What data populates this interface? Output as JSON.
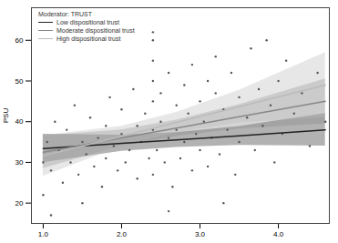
{
  "chart_data": {
    "type": "scatter",
    "y_label": "PSU",
    "legend": "top-left",
    "legend_title": "Moderator: TRUST",
    "grid": false,
    "xlim": [
      0.85,
      4.65
    ],
    "xticks": [
      1,
      2,
      3,
      4
    ],
    "ylim": [
      15,
      68
    ],
    "yticks": [
      20,
      30,
      40,
      50,
      60
    ],
    "points": {
      "color": "#555555",
      "x": [
        1.0,
        1.0,
        1.05,
        1.1,
        1.15,
        1.2,
        1.25,
        1.3,
        1.35,
        1.4,
        1.45,
        1.5,
        1.5,
        1.55,
        1.6,
        1.65,
        1.7,
        1.75,
        1.8,
        1.8,
        1.85,
        1.9,
        1.95,
        2.0,
        2.0,
        2.05,
        2.1,
        2.15,
        2.2,
        2.2,
        2.25,
        2.3,
        2.35,
        2.4,
        2.4,
        2.4,
        2.4,
        2.4,
        2.4,
        2.4,
        2.45,
        2.5,
        2.5,
        2.55,
        2.6,
        2.6,
        2.65,
        2.7,
        2.7,
        2.75,
        2.8,
        2.8,
        2.85,
        2.9,
        2.9,
        2.95,
        3.0,
        3.0,
        3.05,
        3.1,
        3.1,
        3.15,
        3.2,
        3.2,
        3.25,
        3.3,
        3.35,
        3.4,
        3.45,
        3.5,
        3.5,
        3.6,
        3.65,
        3.7,
        3.75,
        3.8,
        3.85,
        3.9,
        3.95,
        4.0,
        4.05,
        4.1,
        4.2,
        4.3,
        4.4,
        4.5,
        4.6,
        1.1,
        2.6,
        3.3
      ],
      "y": [
        30,
        22,
        35,
        28,
        40,
        33,
        25,
        38,
        30,
        44,
        27,
        35,
        20,
        32,
        41,
        29,
        36,
        24,
        39,
        31,
        46,
        34,
        28,
        37,
        43,
        30,
        33,
        48,
        26,
        39,
        35,
        42,
        31,
        55,
        60,
        62,
        50,
        45,
        38,
        27,
        33,
        40,
        47,
        30,
        36,
        52,
        24,
        44,
        38,
        31,
        49,
        35,
        42,
        28,
        54,
        37,
        45,
        33,
        40,
        50,
        29,
        36,
        47,
        56,
        32,
        43,
        38,
        52,
        27,
        46,
        35,
        41,
        58,
        33,
        48,
        39,
        60,
        44,
        30,
        50,
        37,
        55,
        42,
        47,
        34,
        52,
        40,
        17,
        18,
        20
      ]
    },
    "series": [
      {
        "name": "Low dispositional trust",
        "color": "#222222",
        "type": "line",
        "x": [
          1,
          2,
          2.7,
          3.5,
          4.6
        ],
        "values": [
          33.4,
          34.7,
          35.5,
          36.5,
          38.0
        ],
        "lower": [
          29.9,
          32.7,
          33.7,
          34.2,
          34.0
        ],
        "upper": [
          36.9,
          36.7,
          37.3,
          38.8,
          42.0
        ]
      },
      {
        "name": "Moderate dispositional trust",
        "color": "#888888",
        "type": "line",
        "x": [
          1,
          2,
          2.7,
          3.5,
          4.6
        ],
        "values": [
          32.5,
          36.0,
          38.4,
          41.2,
          45.0
        ],
        "lower": [
          28.5,
          34.0,
          36.4,
          38.2,
          39.5
        ],
        "upper": [
          36.5,
          38.0,
          40.4,
          44.2,
          50.5
        ]
      },
      {
        "name": "High dispositional trust",
        "color": "#bbbbbb",
        "type": "line",
        "x": [
          1,
          2,
          2.7,
          3.5,
          4.6
        ],
        "values": [
          31.6,
          36.4,
          39.8,
          43.7,
          49.0
        ],
        "lower": [
          26.6,
          33.9,
          37.3,
          39.7,
          41.0
        ],
        "upper": [
          36.6,
          38.9,
          42.3,
          47.7,
          57.0
        ]
      }
    ]
  }
}
